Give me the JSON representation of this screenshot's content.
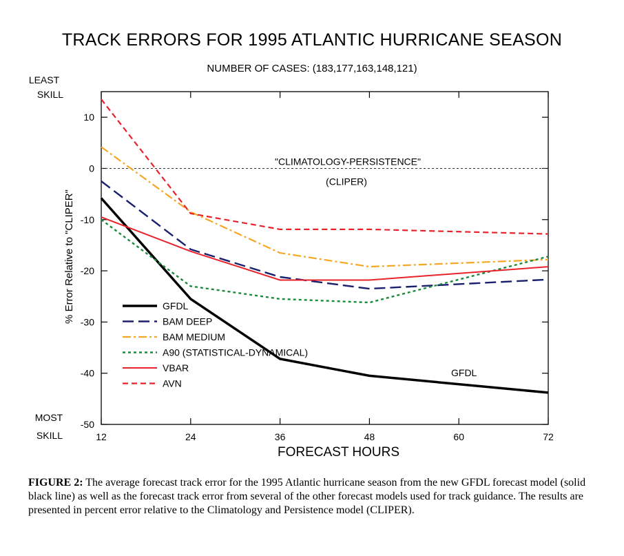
{
  "title": "TRACK ERRORS FOR 1995 ATLANTIC HURRICANE SEASON",
  "subtitle": "NUMBER OF CASES: (183,177,163,148,121)",
  "chart_data": {
    "type": "line",
    "x": [
      12,
      24,
      36,
      48,
      72
    ],
    "xticks": [
      "12",
      "24",
      "36",
      "48",
      "60",
      "72"
    ],
    "yticks": [
      "10",
      "0",
      "-10",
      "-20",
      "-30",
      "-40",
      "-50"
    ],
    "xlim": [
      12,
      72
    ],
    "ylim": [
      -50,
      15
    ],
    "xlabel": "FORECAST HOURS",
    "ylabel": "% Error Relative to \"CLIPER\"",
    "grid": false,
    "legend_position": "bottom-left",
    "top_label": [
      "LEAST",
      "SKILL"
    ],
    "bottom_label": [
      "MOST",
      "SKILL"
    ],
    "reference_line": {
      "y": 0,
      "label": "\"CLIMATOLOGY-PERSISTENCE\"",
      "sublabel": "(CLIPER)"
    },
    "end_annotation": "GFDL",
    "series": [
      {
        "name": "GFDL",
        "values": [
          -5.8,
          -25.5,
          -37.2,
          -40.5,
          -43.8
        ],
        "color": "#000000",
        "dash": "solid",
        "width": 3.5
      },
      {
        "name": "BAM DEEP",
        "values": [
          -2.5,
          -15.8,
          -21.2,
          -23.5,
          -21.7
        ],
        "color": "#1a1f6e",
        "dash": "long",
        "width": 2.4
      },
      {
        "name": "BAM MEDIUM",
        "values": [
          4.2,
          -8.5,
          -16.5,
          -19.2,
          -17.8
        ],
        "color": "#f5a623",
        "dash": "dashdot",
        "width": 2.2
      },
      {
        "name": "A90 (STATISTICAL-DYNAMICAL)",
        "values": [
          -10.0,
          -23.0,
          -25.5,
          -26.2,
          -17.2
        ],
        "color": "#1a8a3a",
        "dash": "dot",
        "width": 2.4
      },
      {
        "name": "VBAR",
        "values": [
          -9.5,
          -16.2,
          -21.8,
          -21.8,
          -19.2
        ],
        "color": "#e8222a",
        "dash": "solid",
        "width": 2
      },
      {
        "name": "AVN",
        "values": [
          13.5,
          -8.8,
          -11.9,
          -11.9,
          -12.8
        ],
        "color": "#e8222a",
        "dash": "short",
        "width": 2.2
      }
    ]
  },
  "caption": {
    "label": "FIGURE 2:",
    "text": "The average forecast track error for the 1995 Atlantic hurricane season from the new GFDL forecast model (solid black line) as well as the forecast track error from several of the other forecast models used for track guidance. The results are presented in percent error relative to the Climatology and Persistence model (CLIPER)."
  }
}
